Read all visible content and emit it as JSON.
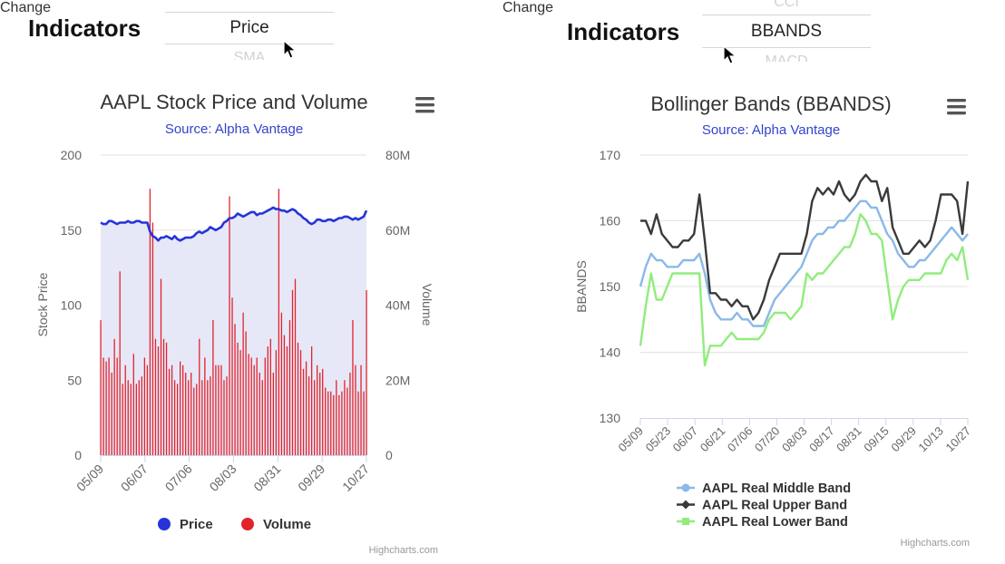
{
  "left": {
    "indicators_label": "Indicators",
    "picker": {
      "above": "",
      "selected": "Price",
      "below": "SMA",
      "side": "Change"
    },
    "menu_icon": "hamburger-menu-icon",
    "credits": "Highcharts.com"
  },
  "right": {
    "indicators_label": "Indicators",
    "picker": {
      "above": "CCI",
      "selected": "BBANDS",
      "below": "MACD",
      "side": "Change"
    },
    "menu_icon": "hamburger-menu-icon",
    "credits": "Highcharts.com"
  },
  "colors": {
    "price": "#2634d9",
    "price_area": "#e6e8f8",
    "volume": "#e3232b",
    "middle_band": "#8bb8e8",
    "upper_band": "#3a3a3a",
    "lower_band": "#90ed7d",
    "subtitle": "#3344cc"
  },
  "chart_data": [
    {
      "type": "line",
      "title": "AAPL Stock Price and Volume",
      "subtitle": "Source: Alpha Vantage",
      "ylabel": "Stock Price",
      "ylabel_right": "Volume",
      "ylim": [
        0,
        200
      ],
      "yticks": [
        "0",
        "50",
        "100",
        "150",
        "200"
      ],
      "ylim_right": [
        0,
        80000000
      ],
      "yticks_right": [
        "0",
        "20M",
        "40M",
        "60M",
        "80M"
      ],
      "xticks": [
        "05/09",
        "06/07",
        "07/06",
        "08/03",
        "08/31",
        "09/29",
        "10/27"
      ],
      "legend_position": "bottom",
      "series": [
        {
          "name": "Price",
          "kind": "area-line",
          "values": [
            155,
            154,
            154,
            156,
            156,
            155,
            154,
            155,
            155,
            155,
            156,
            155,
            155,
            156,
            156,
            155,
            155,
            155,
            149,
            146,
            145,
            143,
            145,
            145,
            146,
            145,
            144,
            146,
            144,
            143,
            144,
            145,
            145,
            145,
            146,
            148,
            149,
            148,
            149,
            150,
            152,
            151,
            150,
            151,
            152,
            155,
            156,
            158,
            158,
            159,
            161,
            160,
            159,
            160,
            161,
            162,
            162,
            160,
            161,
            161,
            162,
            163,
            164,
            165,
            164,
            164,
            163,
            163,
            162,
            163,
            164,
            163,
            161,
            160,
            158,
            157,
            155,
            154,
            155,
            157,
            157,
            156,
            156,
            157,
            157,
            156,
            157,
            158,
            158,
            159,
            159,
            158,
            157,
            158,
            157,
            158,
            159,
            163
          ]
        },
        {
          "name": "Volume",
          "kind": "column",
          "values": [
            36000000,
            26000000,
            25000000,
            26000000,
            22000000,
            31000000,
            26000000,
            49000000,
            19000000,
            24000000,
            20000000,
            19000000,
            27000000,
            19000000,
            20000000,
            21000000,
            26000000,
            24000000,
            71000000,
            62000000,
            31000000,
            29000000,
            47000000,
            31000000,
            30000000,
            23000000,
            24000000,
            20000000,
            19000000,
            25000000,
            24000000,
            22000000,
            20000000,
            22000000,
            18000000,
            19000000,
            31000000,
            20000000,
            26000000,
            20000000,
            21000000,
            36000000,
            24000000,
            24000000,
            24000000,
            20000000,
            21000000,
            69000000,
            42000000,
            35000000,
            30000000,
            28000000,
            38000000,
            33000000,
            27000000,
            26000000,
            24000000,
            26000000,
            22000000,
            20000000,
            26000000,
            29000000,
            31000000,
            22000000,
            28000000,
            71000000,
            38000000,
            32000000,
            29000000,
            36000000,
            44000000,
            47000000,
            30000000,
            28000000,
            23000000,
            25000000,
            21000000,
            29000000,
            20000000,
            24000000,
            22000000,
            23000000,
            18000000,
            17000000,
            17000000,
            16000000,
            20000000,
            16000000,
            17000000,
            20000000,
            18000000,
            22000000,
            36000000,
            24000000,
            17000000,
            24000000,
            17000000,
            44000000
          ]
        }
      ]
    },
    {
      "type": "line",
      "title": "Bollinger Bands (BBANDS)",
      "subtitle": "Source: Alpha Vantage",
      "ylabel": "BBANDS",
      "ylim": [
        130,
        170
      ],
      "yticks": [
        "130",
        "140",
        "150",
        "160",
        "170"
      ],
      "xticks": [
        "05/09",
        "05/23",
        "06/07",
        "06/21",
        "07/06",
        "07/20",
        "08/03",
        "08/17",
        "08/31",
        "09/15",
        "09/29",
        "10/13",
        "10/27"
      ],
      "legend_position": "bottom",
      "series": [
        {
          "name": "AAPL Real Middle Band",
          "values": [
            150,
            153,
            155,
            154,
            154,
            153,
            153,
            153,
            154,
            154,
            154,
            155,
            152,
            148,
            146,
            145,
            145,
            145,
            146,
            145,
            145,
            144,
            144,
            144,
            146,
            148,
            149,
            150,
            151,
            152,
            153,
            155,
            157,
            158,
            158,
            159,
            159,
            160,
            160,
            161,
            162,
            163,
            163,
            162,
            162,
            160,
            158,
            157,
            155,
            154,
            153,
            153,
            154,
            154,
            155,
            156,
            157,
            158,
            159,
            158,
            157,
            158
          ]
        },
        {
          "name": "AAPL Real Upper Band",
          "values": [
            160,
            160,
            158,
            161,
            158,
            157,
            156,
            156,
            157,
            157,
            158,
            164,
            157,
            149,
            149,
            148,
            148,
            147,
            148,
            147,
            147,
            145,
            146,
            148,
            151,
            153,
            155,
            155,
            155,
            155,
            155,
            158,
            163,
            165,
            164,
            165,
            164,
            166,
            164,
            163,
            164,
            166,
            167,
            166,
            166,
            163,
            165,
            159,
            157,
            155,
            155,
            156,
            157,
            156,
            157,
            160,
            164,
            164,
            164,
            163,
            158,
            166
          ]
        },
        {
          "name": "AAPL Real Lower Band",
          "values": [
            141,
            147,
            152,
            148,
            148,
            150,
            152,
            152,
            152,
            152,
            152,
            152,
            138,
            141,
            141,
            141,
            142,
            143,
            142,
            142,
            142,
            142,
            142,
            143,
            145,
            146,
            146,
            146,
            145,
            146,
            147,
            152,
            151,
            152,
            152,
            153,
            154,
            155,
            156,
            156,
            158,
            161,
            160,
            158,
            158,
            157,
            151,
            145,
            148,
            150,
            151,
            151,
            151,
            152,
            152,
            152,
            152,
            154,
            155,
            154,
            156,
            151
          ]
        }
      ]
    }
  ]
}
